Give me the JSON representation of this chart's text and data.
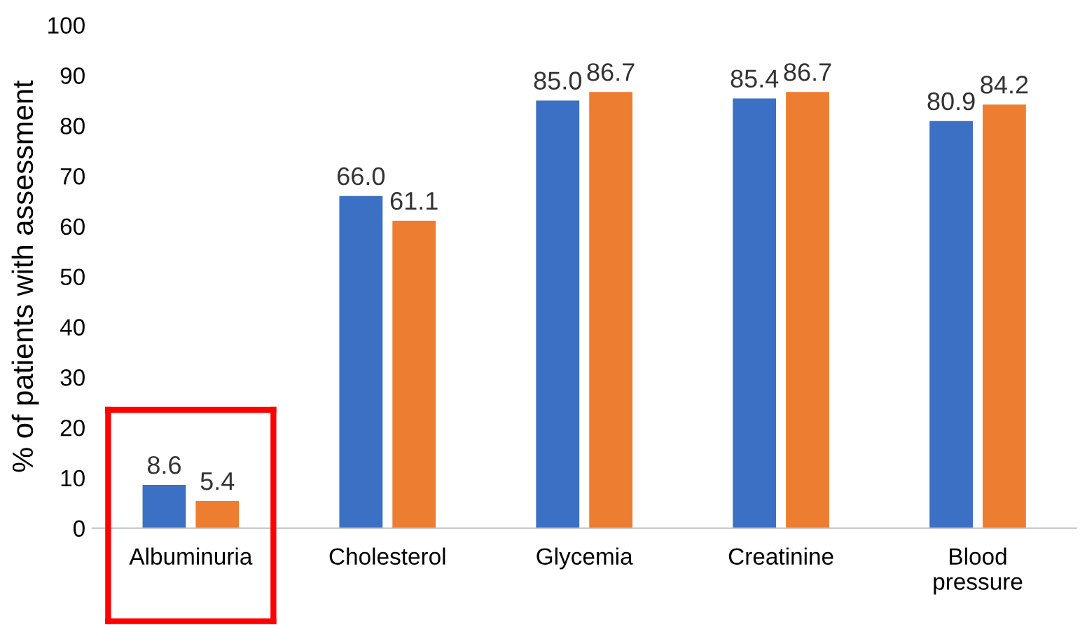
{
  "chart_data": {
    "type": "bar",
    "ylabel": "% of patients with assessment",
    "categories": [
      "Albuminuria",
      "Cholesterol",
      "Glycemia",
      "Creatinine",
      "Blood\npressure"
    ],
    "series": [
      {
        "color": "#3c70c4",
        "values": [
          8.6,
          66.0,
          85.0,
          85.4,
          80.9
        ],
        "value_labels": [
          "8.6",
          "66.0",
          "85.0",
          "85.4",
          "80.9"
        ]
      },
      {
        "color": "#ed7d31",
        "values": [
          5.4,
          61.1,
          86.7,
          86.7,
          84.2
        ],
        "value_labels": [
          "5.4",
          "61.1",
          "86.7",
          "86.7",
          "84.2"
        ]
      }
    ],
    "ylim": [
      0,
      100
    ],
    "yticks": [
      0,
      10,
      20,
      30,
      40,
      50,
      60,
      70,
      80,
      90,
      100
    ],
    "grid": false,
    "legend": false
  }
}
